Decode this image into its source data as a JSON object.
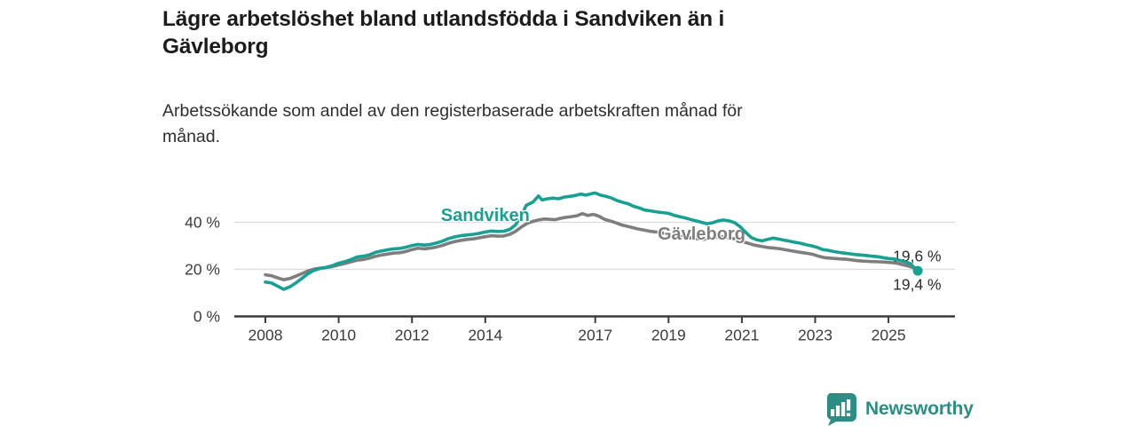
{
  "title": {
    "full": "Lägre arbetslöshet bland utlandsfödda i Sandviken än i Gävleborg",
    "line1": "Lägre arbetslöshet bland utlandsfödda i Sandviken än i",
    "line2": "Gävleborg"
  },
  "subtitle": {
    "full": "Arbetssökande som andel av den registerbaserade arbetskraften månad för månad.",
    "line1": "Arbetssökande som andel av den registerbaserade arbetskraften månad för",
    "line2": "månad."
  },
  "branding": {
    "logo_text": "Newsworthy",
    "logo_icon": "bar-chart-pin-icon",
    "logo_color": "#2c8d84"
  },
  "colors": {
    "sandviken": "#18a092",
    "gavleborg": "#7e7e7e",
    "axis": "#3b3b3b",
    "grid": "#dcdcdc",
    "tick_text": "#3c3c3c",
    "value_label_text": "#2e2e2e"
  },
  "chart_data": {
    "type": "line",
    "title": "Lägre arbetslöshet bland utlandsfödda i Sandviken än i Gävleborg",
    "subtitle": "Arbetssökande som andel av den registerbaserade arbetskraften månad för månad.",
    "xlabel": "",
    "ylabel": "",
    "x_unit": "decimal year (monthly data)",
    "y_unit": "percent of registered labour force",
    "xlim": [
      2007.15,
      2026.8
    ],
    "ylim": [
      0,
      55
    ],
    "grid": "horizontal-only",
    "legend_position": "inline-labels-on-lines",
    "x_ticks": [
      {
        "value": 2008,
        "label": "2008"
      },
      {
        "value": 2010,
        "label": "2010"
      },
      {
        "value": 2012,
        "label": "2012"
      },
      {
        "value": 2014,
        "label": "2014"
      },
      {
        "value": 2017,
        "label": "2017"
      },
      {
        "value": 2019,
        "label": "2019"
      },
      {
        "value": 2021,
        "label": "2021"
      },
      {
        "value": 2023,
        "label": "2023"
      },
      {
        "value": 2025,
        "label": "2025"
      }
    ],
    "y_ticks": [
      {
        "value": 0,
        "label": "0 %"
      },
      {
        "value": 20,
        "label": "20 %"
      },
      {
        "value": 40,
        "label": "40 %"
      }
    ],
    "series": [
      {
        "name": "Gävleborg",
        "slug": "gavleborg",
        "color": "#7e7e7e",
        "label_pos": {
          "x": 2019.9,
          "y": 35.3
        },
        "end_label": {
          "text": "19,6 %",
          "placement": "above"
        },
        "end_dot": false,
        "points": [
          [
            2008.0,
            17.7
          ],
          [
            2008.17,
            17.3
          ],
          [
            2008.33,
            16.4
          ],
          [
            2008.5,
            15.6
          ],
          [
            2008.67,
            16.1
          ],
          [
            2008.83,
            17.1
          ],
          [
            2009.0,
            18.2
          ],
          [
            2009.17,
            19.4
          ],
          [
            2009.33,
            20.1
          ],
          [
            2009.5,
            20.5
          ],
          [
            2009.67,
            20.8
          ],
          [
            2009.83,
            21.2
          ],
          [
            2010.0,
            21.9
          ],
          [
            2010.17,
            22.5
          ],
          [
            2010.33,
            23.2
          ],
          [
            2010.5,
            23.9
          ],
          [
            2010.67,
            24.2
          ],
          [
            2010.83,
            24.7
          ],
          [
            2011.0,
            25.5
          ],
          [
            2011.17,
            26.1
          ],
          [
            2011.33,
            26.5
          ],
          [
            2011.5,
            26.9
          ],
          [
            2011.67,
            27.1
          ],
          [
            2011.83,
            27.6
          ],
          [
            2012.0,
            28.4
          ],
          [
            2012.17,
            29.0
          ],
          [
            2012.33,
            28.7
          ],
          [
            2012.5,
            29.0
          ],
          [
            2012.67,
            29.5
          ],
          [
            2012.83,
            30.2
          ],
          [
            2013.0,
            31.1
          ],
          [
            2013.17,
            31.8
          ],
          [
            2013.33,
            32.3
          ],
          [
            2013.5,
            32.7
          ],
          [
            2013.67,
            33.0
          ],
          [
            2013.83,
            33.4
          ],
          [
            2014.0,
            33.9
          ],
          [
            2014.17,
            34.3
          ],
          [
            2014.33,
            34.1
          ],
          [
            2014.5,
            34.2
          ],
          [
            2014.67,
            34.9
          ],
          [
            2014.83,
            36.2
          ],
          [
            2015.0,
            38.2
          ],
          [
            2015.15,
            39.6
          ],
          [
            2015.3,
            40.4
          ],
          [
            2015.45,
            41.0
          ],
          [
            2015.6,
            41.4
          ],
          [
            2015.75,
            41.3
          ],
          [
            2015.9,
            41.1
          ],
          [
            2016.05,
            41.7
          ],
          [
            2016.2,
            42.1
          ],
          [
            2016.35,
            42.4
          ],
          [
            2016.5,
            42.8
          ],
          [
            2016.65,
            43.7
          ],
          [
            2016.8,
            42.9
          ],
          [
            2016.95,
            43.4
          ],
          [
            2017.1,
            42.6
          ],
          [
            2017.25,
            41.3
          ],
          [
            2017.4,
            40.6
          ],
          [
            2017.55,
            39.9
          ],
          [
            2017.7,
            39.0
          ],
          [
            2017.85,
            38.4
          ],
          [
            2018.0,
            37.8
          ],
          [
            2018.15,
            37.2
          ],
          [
            2018.3,
            36.8
          ],
          [
            2018.45,
            36.3
          ],
          [
            2018.6,
            36.0
          ],
          [
            2018.75,
            35.7
          ],
          [
            2018.9,
            35.3
          ],
          [
            2019.05,
            34.8
          ],
          [
            2019.2,
            34.4
          ],
          [
            2019.35,
            33.9
          ],
          [
            2019.5,
            33.6
          ],
          [
            2019.65,
            33.3
          ],
          [
            2019.8,
            33.0
          ],
          [
            2019.95,
            32.8
          ],
          [
            2020.1,
            33.0
          ],
          [
            2020.25,
            33.5
          ],
          [
            2020.4,
            33.9
          ],
          [
            2020.55,
            33.7
          ],
          [
            2020.7,
            33.3
          ],
          [
            2020.85,
            32.7
          ],
          [
            2021.0,
            31.9
          ],
          [
            2021.15,
            31.2
          ],
          [
            2021.3,
            30.5
          ],
          [
            2021.45,
            30.0
          ],
          [
            2021.6,
            29.6
          ],
          [
            2021.75,
            29.2
          ],
          [
            2021.9,
            29.0
          ],
          [
            2022.05,
            28.7
          ],
          [
            2022.2,
            28.3
          ],
          [
            2022.35,
            27.9
          ],
          [
            2022.5,
            27.5
          ],
          [
            2022.65,
            27.1
          ],
          [
            2022.8,
            26.8
          ],
          [
            2022.95,
            26.3
          ],
          [
            2023.1,
            25.6
          ],
          [
            2023.25,
            25.0
          ],
          [
            2023.4,
            24.8
          ],
          [
            2023.55,
            24.6
          ],
          [
            2023.7,
            24.4
          ],
          [
            2023.85,
            24.3
          ],
          [
            2024.0,
            24.0
          ],
          [
            2024.15,
            23.7
          ],
          [
            2024.3,
            23.5
          ],
          [
            2024.45,
            23.4
          ],
          [
            2024.6,
            23.3
          ],
          [
            2024.75,
            23.2
          ],
          [
            2024.9,
            23.1
          ],
          [
            2025.05,
            22.9
          ],
          [
            2025.2,
            22.7
          ],
          [
            2025.35,
            22.1
          ],
          [
            2025.5,
            21.6
          ],
          [
            2025.65,
            20.9
          ],
          [
            2025.8,
            19.6
          ]
        ]
      },
      {
        "name": "Sandviken",
        "slug": "sandviken",
        "color": "#18a092",
        "label_pos": {
          "x": 2014.0,
          "y": 43.2
        },
        "end_label": {
          "text": "19,4 %",
          "placement": "below"
        },
        "end_dot": true,
        "points": [
          [
            2008.0,
            14.6
          ],
          [
            2008.17,
            14.2
          ],
          [
            2008.33,
            12.9
          ],
          [
            2008.5,
            11.5
          ],
          [
            2008.67,
            12.6
          ],
          [
            2008.83,
            14.2
          ],
          [
            2009.0,
            16.2
          ],
          [
            2009.17,
            18.2
          ],
          [
            2009.33,
            19.6
          ],
          [
            2009.5,
            20.4
          ],
          [
            2009.67,
            20.9
          ],
          [
            2009.83,
            21.6
          ],
          [
            2010.0,
            22.6
          ],
          [
            2010.17,
            23.3
          ],
          [
            2010.33,
            24.1
          ],
          [
            2010.5,
            25.3
          ],
          [
            2010.67,
            25.6
          ],
          [
            2010.83,
            26.1
          ],
          [
            2011.0,
            27.2
          ],
          [
            2011.17,
            27.8
          ],
          [
            2011.33,
            28.3
          ],
          [
            2011.5,
            28.7
          ],
          [
            2011.67,
            28.9
          ],
          [
            2011.83,
            29.4
          ],
          [
            2012.0,
            30.1
          ],
          [
            2012.17,
            30.6
          ],
          [
            2012.33,
            30.3
          ],
          [
            2012.5,
            30.6
          ],
          [
            2012.67,
            31.2
          ],
          [
            2012.83,
            32.0
          ],
          [
            2013.0,
            33.1
          ],
          [
            2013.17,
            33.8
          ],
          [
            2013.33,
            34.3
          ],
          [
            2013.5,
            34.6
          ],
          [
            2013.67,
            34.9
          ],
          [
            2013.83,
            35.3
          ],
          [
            2014.0,
            35.9
          ],
          [
            2014.17,
            36.3
          ],
          [
            2014.33,
            36.1
          ],
          [
            2014.5,
            36.2
          ],
          [
            2014.67,
            37.0
          ],
          [
            2014.83,
            39.0
          ],
          [
            2015.0,
            43.5
          ],
          [
            2015.12,
            47.3
          ],
          [
            2015.3,
            48.6
          ],
          [
            2015.45,
            51.2
          ],
          [
            2015.55,
            49.5
          ],
          [
            2015.7,
            50.0
          ],
          [
            2015.85,
            50.3
          ],
          [
            2016.0,
            50.0
          ],
          [
            2016.15,
            50.7
          ],
          [
            2016.3,
            51.0
          ],
          [
            2016.45,
            51.4
          ],
          [
            2016.6,
            52.0
          ],
          [
            2016.75,
            51.6
          ],
          [
            2016.9,
            52.2
          ],
          [
            2017.0,
            52.5
          ],
          [
            2017.15,
            51.5
          ],
          [
            2017.3,
            51.0
          ],
          [
            2017.45,
            50.3
          ],
          [
            2017.6,
            49.2
          ],
          [
            2017.75,
            48.5
          ],
          [
            2017.9,
            47.9
          ],
          [
            2018.05,
            46.8
          ],
          [
            2018.2,
            46.1
          ],
          [
            2018.35,
            45.2
          ],
          [
            2018.5,
            44.9
          ],
          [
            2018.65,
            44.5
          ],
          [
            2018.8,
            44.2
          ],
          [
            2019.0,
            43.8
          ],
          [
            2019.15,
            43.0
          ],
          [
            2019.3,
            42.4
          ],
          [
            2019.45,
            41.9
          ],
          [
            2019.6,
            41.2
          ],
          [
            2019.75,
            40.6
          ],
          [
            2019.9,
            40.0
          ],
          [
            2020.05,
            39.4
          ],
          [
            2020.2,
            39.8
          ],
          [
            2020.35,
            40.6
          ],
          [
            2020.5,
            41.0
          ],
          [
            2020.65,
            40.6
          ],
          [
            2020.8,
            39.9
          ],
          [
            2020.95,
            38.2
          ],
          [
            2021.1,
            35.8
          ],
          [
            2021.25,
            33.6
          ],
          [
            2021.4,
            32.6
          ],
          [
            2021.55,
            32.1
          ],
          [
            2021.7,
            32.7
          ],
          [
            2021.85,
            33.3
          ],
          [
            2022.0,
            32.9
          ],
          [
            2022.15,
            32.4
          ],
          [
            2022.3,
            32.0
          ],
          [
            2022.45,
            31.5
          ],
          [
            2022.6,
            31.1
          ],
          [
            2022.75,
            30.5
          ],
          [
            2022.9,
            30.0
          ],
          [
            2023.05,
            29.4
          ],
          [
            2023.2,
            28.4
          ],
          [
            2023.35,
            28.1
          ],
          [
            2023.5,
            27.6
          ],
          [
            2023.65,
            27.2
          ],
          [
            2023.8,
            26.9
          ],
          [
            2023.95,
            26.6
          ],
          [
            2024.1,
            26.3
          ],
          [
            2024.25,
            26.1
          ],
          [
            2024.4,
            25.9
          ],
          [
            2024.55,
            25.6
          ],
          [
            2024.7,
            25.4
          ],
          [
            2024.85,
            25.0
          ],
          [
            2025.0,
            24.6
          ],
          [
            2025.15,
            24.4
          ],
          [
            2025.3,
            23.8
          ],
          [
            2025.45,
            23.2
          ],
          [
            2025.6,
            22.4
          ],
          [
            2025.7,
            20.8
          ],
          [
            2025.8,
            19.4
          ]
        ]
      }
    ]
  }
}
